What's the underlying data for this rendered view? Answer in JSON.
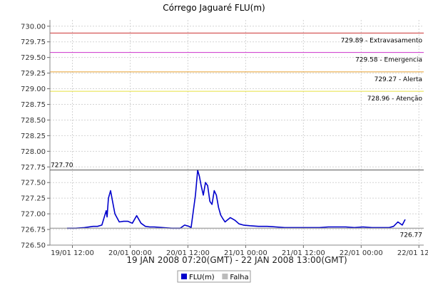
{
  "chart_data": {
    "type": "line",
    "title": "Córrego Jaguaré FLU(m)",
    "xlabel": "19 JAN 2008 07:20(GMT) - 22 JAN 2008 13:00(GMT)",
    "ylabel": "",
    "x_range_hours": [
      0,
      77.67
    ],
    "ylim": [
      726.5,
      730.1
    ],
    "y_ticks": [
      726.5,
      726.75,
      727.0,
      727.25,
      727.5,
      727.75,
      728.0,
      728.25,
      728.5,
      728.75,
      729.0,
      729.25,
      729.5,
      729.75,
      730.0
    ],
    "y_tick_labels": [
      "726.50",
      "726.75",
      "727.00",
      "727.25",
      "727.50",
      "727.75",
      "728.00",
      "728.25",
      "728.50",
      "728.75",
      "729.00",
      "729.25",
      "729.50",
      "729.75",
      "730.00"
    ],
    "x_ticks": [
      {
        "label": "19/01 12:00",
        "hour": 4.67
      },
      {
        "label": "20/01 00:00",
        "hour": 16.67
      },
      {
        "label": "20/01 12:00",
        "hour": 28.67
      },
      {
        "label": "21/01 00:00",
        "hour": 40.67
      },
      {
        "label": "21/01 12:00",
        "hour": 52.67
      },
      {
        "label": "22/01 00:00",
        "hour": 64.67
      },
      {
        "label": "22/01 12:00",
        "hour": 76.67
      }
    ],
    "grid": true,
    "legend": "bottom-center",
    "reference_lines": [
      {
        "label": "729.89 - Extravasamento",
        "value": 729.89,
        "color": "#cc3333"
      },
      {
        "label": "729.58 - Emergencia",
        "value": 729.58,
        "color": "#cc33cc"
      },
      {
        "label": "729.27 - Alerta",
        "value": 729.27,
        "color": "#e8a030"
      },
      {
        "label": "728.96 - Atenção",
        "value": 728.96,
        "color": "#e8e040"
      }
    ],
    "max_marker": {
      "label": "727.70",
      "value": 727.7,
      "color": "#555555"
    },
    "min_marker": {
      "label": "726.77",
      "value": 726.77,
      "color": "#888888"
    },
    "series": [
      {
        "name": "FLU(m)",
        "color": "#0000cc",
        "x": [
          0,
          2,
          4,
          6,
          7,
          8,
          9,
          9.2,
          9.5,
          10,
          10.5,
          11,
          12,
          13,
          14,
          15,
          16,
          17,
          18,
          19,
          20,
          22,
          24,
          26,
          27,
          28,
          28.5,
          29.5,
          30,
          30.4,
          30.8,
          31.3,
          31.8,
          32.3,
          32.8,
          33.3,
          33.8,
          34.3,
          34.8,
          35.3,
          35.8,
          36.3,
          36.8,
          37.5,
          38.5,
          39.5,
          40.5,
          42,
          44,
          46,
          48,
          50,
          52,
          54,
          56,
          58,
          60,
          62,
          64,
          66,
          68,
          70,
          72,
          74,
          75,
          76,
          77,
          77.67
        ],
        "values": [
          726.77,
          726.77,
          726.78,
          726.8,
          726.8,
          726.82,
          727.05,
          726.95,
          727.25,
          727.37,
          727.18,
          727.0,
          726.87,
          726.88,
          726.88,
          726.85,
          726.97,
          726.85,
          726.8,
          726.79,
          726.79,
          726.78,
          726.77,
          726.77,
          726.82,
          726.8,
          726.78,
          727.3,
          727.7,
          727.6,
          727.45,
          727.3,
          727.5,
          727.45,
          727.2,
          727.15,
          727.37,
          727.3,
          727.1,
          726.98,
          726.92,
          726.87,
          726.9,
          726.94,
          726.9,
          726.84,
          726.82,
          726.81,
          726.8,
          726.8,
          726.79,
          726.78,
          726.78,
          726.78,
          726.78,
          726.78,
          726.79,
          726.79,
          726.79,
          726.78,
          726.79,
          726.78,
          726.78,
          726.78,
          726.8,
          726.87,
          726.82,
          726.91
        ]
      }
    ],
    "legend_entries": [
      {
        "name": "FLU(m)",
        "color": "#0000cc"
      },
      {
        "name": "Falha",
        "color": "#bbbbbb"
      }
    ]
  }
}
